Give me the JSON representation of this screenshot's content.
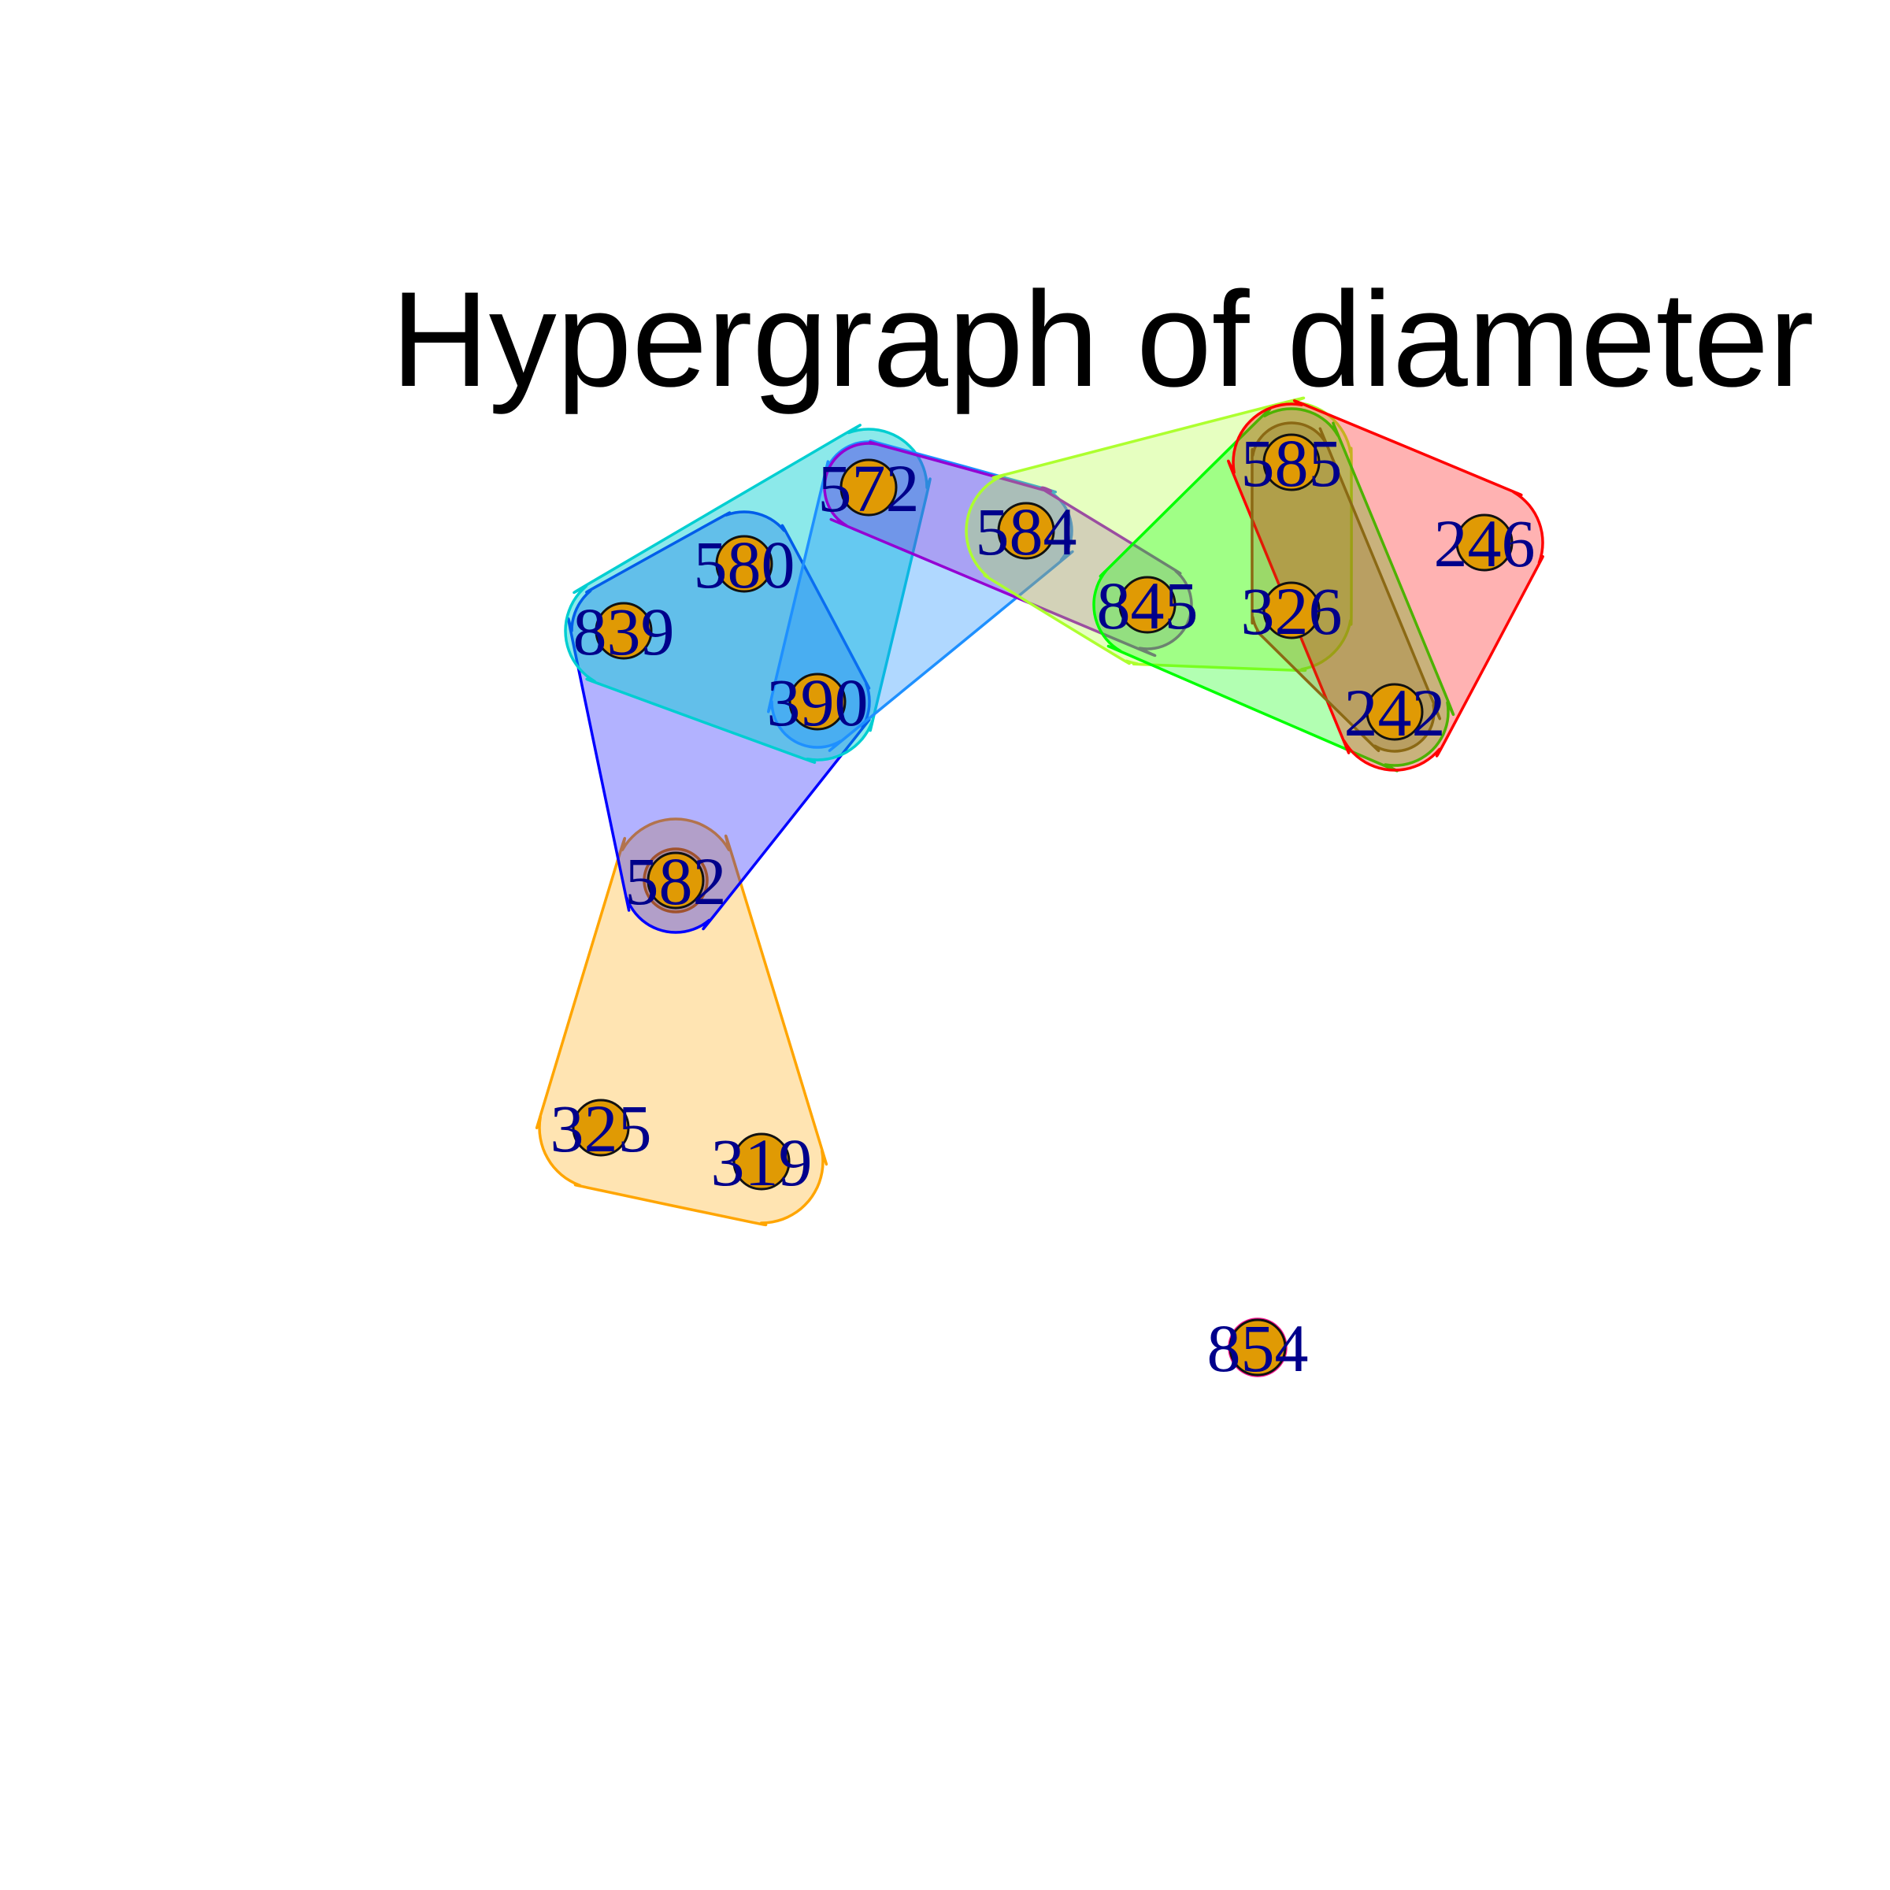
{
  "title": "Hypergraph of diameter",
  "colors": {
    "background": "#ffffff",
    "node_fill": "#e09a04",
    "node_stroke": "#111111",
    "label": "#00008b",
    "title": "#000000"
  },
  "nodes": [
    {
      "id": "572",
      "label": "572"
    },
    {
      "id": "584",
      "label": "584"
    },
    {
      "id": "580",
      "label": "580"
    },
    {
      "id": "839",
      "label": "839"
    },
    {
      "id": "390",
      "label": "390"
    },
    {
      "id": "845",
      "label": "845"
    },
    {
      "id": "585",
      "label": "585"
    },
    {
      "id": "326",
      "label": "326"
    },
    {
      "id": "246",
      "label": "246"
    },
    {
      "id": "242",
      "label": "242"
    },
    {
      "id": "582",
      "label": "582"
    },
    {
      "id": "325",
      "label": "325"
    },
    {
      "id": "319",
      "label": "319"
    },
    {
      "id": "854",
      "label": "854"
    }
  ],
  "hyperedges": [
    {
      "name": "edge-orange",
      "color": "#ffa500",
      "fill": "rgba(255,165,0,0.30)",
      "members": [
        "582",
        "325",
        "319"
      ]
    },
    {
      "name": "edge-blue",
      "color": "#0000ff",
      "fill": "rgba(0,0,255,0.30)",
      "members": [
        "580",
        "839",
        "390",
        "582"
      ]
    },
    {
      "name": "edge-cyan",
      "color": "#00ced1",
      "fill": "rgba(0,206,209,0.45)",
      "members": [
        "572",
        "580",
        "839",
        "390"
      ]
    },
    {
      "name": "edge-azure",
      "color": "#1e90ff",
      "fill": "rgba(30,144,255,0.35)",
      "members": [
        "572",
        "584",
        "390"
      ]
    },
    {
      "name": "edge-violet",
      "color": "#9400d3",
      "fill": "rgba(148,0,211,0.25)",
      "members": [
        "572",
        "584",
        "845"
      ]
    },
    {
      "name": "edge-lime",
      "color": "#adff2f",
      "fill": "rgba(173,255,47,0.30)",
      "members": [
        "584",
        "845",
        "585",
        "326"
      ]
    },
    {
      "name": "edge-green",
      "color": "#00ff00",
      "fill": "rgba(0,255,0,0.30)",
      "members": [
        "845",
        "585",
        "326",
        "242"
      ]
    },
    {
      "name": "edge-red",
      "color": "#ff0000",
      "fill": "rgba(255,0,0,0.30)",
      "members": [
        "585",
        "246",
        "242"
      ]
    },
    {
      "name": "edge-olive",
      "color": "#8b6914",
      "fill": "rgba(139,105,20,0.25)",
      "members": [
        "585",
        "326",
        "242"
      ]
    },
    {
      "name": "edge-brown",
      "color": "#a0522d",
      "fill": "rgba(160,82,45,0.25)",
      "members": [
        "582"
      ]
    },
    {
      "name": "edge-magenta",
      "color": "#ff1493",
      "fill": "rgba(255,20,147,0.35)",
      "members": [
        "854"
      ]
    }
  ]
}
